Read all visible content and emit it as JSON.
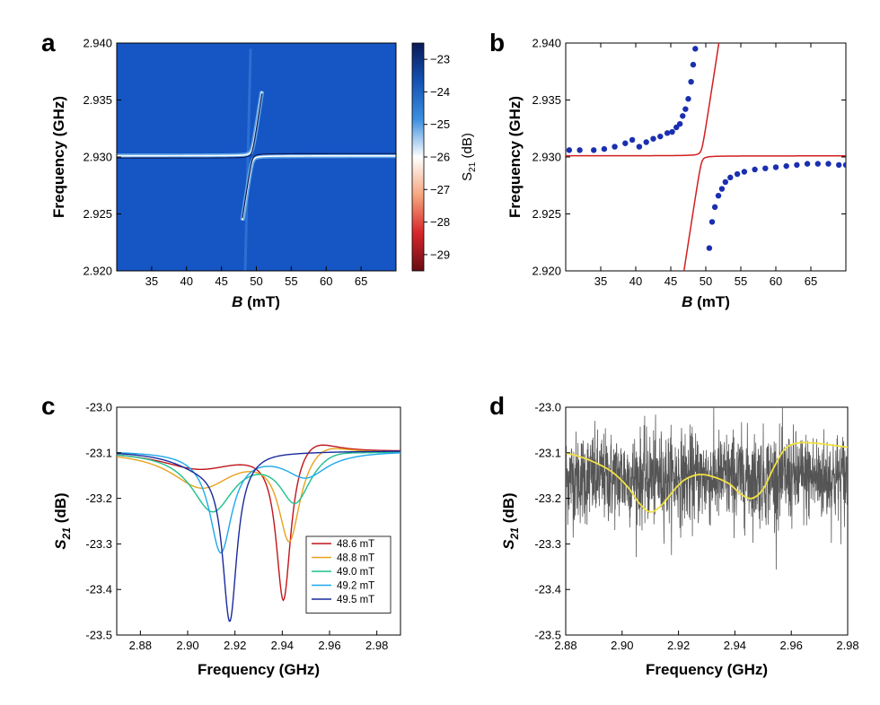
{
  "chart_data": [
    {
      "panel": "a",
      "type": "heatmap",
      "xlabel_var": "B",
      "xlabel_unit": " (mT)",
      "ylabel": "Frequency (GHz)",
      "xlim": [
        30,
        70
      ],
      "ylim": [
        2.92,
        2.94
      ],
      "xticks": [
        35,
        40,
        45,
        50,
        55,
        60,
        65
      ],
      "yticks": [
        "2.920",
        "2.925",
        "2.930",
        "2.935",
        "2.940"
      ],
      "colorbar": {
        "label_main": "S",
        "label_sub": "21",
        "label_unit": " (dB)",
        "range": [
          -29.5,
          -22.5
        ],
        "ticks": [
          -23,
          -24,
          -25,
          -26,
          -27,
          -28,
          -29
        ],
        "tick_labels": [
          "−23",
          "−24",
          "−25",
          "−26",
          "−27",
          "−28",
          "−29"
        ],
        "colors": [
          "#0b1a57",
          "#1452b4",
          "#3a8fe0",
          "#ffffff",
          "#f5a77e",
          "#d8262a",
          "#680c14"
        ]
      },
      "background_color": "#1555c4",
      "model": {
        "f0": 2.9301,
        "B0": 49.4,
        "coupling_g": 0.0006,
        "slope": 0.004
      }
    },
    {
      "panel": "b",
      "type": "scatter",
      "xlabel_var": "B",
      "xlabel_unit": " (mT)",
      "ylabel": "Frequency (GHz)",
      "xlim": [
        30,
        70
      ],
      "ylim": [
        2.92,
        2.94
      ],
      "xticks": [
        35,
        40,
        45,
        50,
        55,
        60,
        65
      ],
      "yticks": [
        "2.920",
        "2.925",
        "2.930",
        "2.935",
        "2.940"
      ],
      "series": [
        {
          "name": "upper branch",
          "points": [
            [
              30.5,
              2.9306
            ],
            [
              32,
              2.9306
            ],
            [
              34,
              2.9306
            ],
            [
              35.5,
              2.9307
            ],
            [
              37,
              2.9309
            ],
            [
              38.5,
              2.9312
            ],
            [
              39.5,
              2.9315
            ],
            [
              40.5,
              2.9309
            ],
            [
              41.5,
              2.9313
            ],
            [
              42.5,
              2.9316
            ],
            [
              43.5,
              2.9318
            ],
            [
              44.5,
              2.9321
            ],
            [
              45.2,
              2.9322
            ],
            [
              45.8,
              2.9326
            ],
            [
              46.3,
              2.9329
            ],
            [
              46.7,
              2.9336
            ],
            [
              47.1,
              2.9342
            ],
            [
              47.5,
              2.9351
            ],
            [
              47.9,
              2.9366
            ],
            [
              48.2,
              2.9381
            ],
            [
              48.5,
              2.9395
            ]
          ]
        },
        {
          "name": "lower branch",
          "points": [
            [
              50.5,
              2.922
            ],
            [
              50.9,
              2.9243
            ],
            [
              51.3,
              2.9256
            ],
            [
              51.8,
              2.9266
            ],
            [
              52.3,
              2.9272
            ],
            [
              52.8,
              2.9278
            ],
            [
              53.5,
              2.9282
            ],
            [
              54.5,
              2.9285
            ],
            [
              55.5,
              2.9287
            ],
            [
              57,
              2.9289
            ],
            [
              58.5,
              2.929
            ],
            [
              60,
              2.9291
            ],
            [
              61.5,
              2.9292
            ],
            [
              63,
              2.9293
            ],
            [
              64.5,
              2.9294
            ],
            [
              66,
              2.9294
            ],
            [
              67.5,
              2.9294
            ],
            [
              69,
              2.9293
            ],
            [
              70,
              2.9293
            ]
          ]
        }
      ],
      "fit_color": "#d21f1f",
      "point_color": "#1a2fb0"
    },
    {
      "panel": "c",
      "type": "line",
      "xlabel": "Frequency (GHz)",
      "ylabel_main": "S",
      "ylabel_sub": "21",
      "ylabel_unit": " (dB)",
      "xlim": [
        2.87,
        2.99
      ],
      "ylim": [
        -23.5,
        -23.0
      ],
      "xticks": [
        "2.88",
        "2.90",
        "2.92",
        "2.94",
        "2.96",
        "2.98"
      ],
      "yticks": [
        "-23.0",
        "-23.1",
        "-23.2",
        "-23.3",
        "-23.4",
        "-23.5"
      ],
      "baseline": -23.095,
      "series": [
        {
          "name": "48.6 mT",
          "color": "#c0151b",
          "dips": [
            {
              "f": 2.9405,
              "depth": 0.34,
              "w": 0.0038
            },
            {
              "f": 2.905,
              "depth": 0.04,
              "w": 0.02
            }
          ],
          "peaks": [
            {
              "f": 2.952,
              "h": 0.04,
              "w": 0.012
            }
          ]
        },
        {
          "name": "48.8 mT",
          "color": "#e8a21e",
          "dips": [
            {
              "f": 2.943,
              "depth": 0.2,
              "w": 0.0055
            },
            {
              "f": 2.906,
              "depth": 0.08,
              "w": 0.016
            }
          ],
          "peaks": [
            {
              "f": 2.957,
              "h": 0.03,
              "w": 0.012
            }
          ]
        },
        {
          "name": "49.0 mT",
          "color": "#1fc08d",
          "dips": [
            {
              "f": 2.9455,
              "depth": 0.11,
              "w": 0.008
            },
            {
              "f": 2.9105,
              "depth": 0.13,
              "w": 0.011
            }
          ],
          "peaks": [
            {
              "f": 2.961,
              "h": 0.015,
              "w": 0.012
            }
          ]
        },
        {
          "name": "49.2 mT",
          "color": "#1ea8ec",
          "dips": [
            {
              "f": 2.914,
              "depth": 0.22,
              "w": 0.0058
            },
            {
              "f": 2.95,
              "depth": 0.055,
              "w": 0.011
            }
          ],
          "peaks": []
        },
        {
          "name": "49.5 mT",
          "color": "#1a2a9c",
          "dips": [
            {
              "f": 2.9178,
              "depth": 0.36,
              "w": 0.0037
            },
            {
              "f": 2.905,
              "depth": 0.03,
              "w": 0.015
            }
          ],
          "peaks": [
            {
              "f": 2.933,
              "h": 0.005,
              "w": 0.012
            }
          ]
        }
      ]
    },
    {
      "panel": "d",
      "type": "line",
      "xlabel": "Frequency (GHz)",
      "ylabel_main": "S",
      "ylabel_sub": "21",
      "ylabel_unit": " (dB)",
      "xlim": [
        2.88,
        2.98
      ],
      "ylim": [
        -23.5,
        -23.0
      ],
      "xticks": [
        "2.88",
        "2.90",
        "2.92",
        "2.94",
        "2.96",
        "2.98"
      ],
      "yticks": [
        "-23.0",
        "-23.1",
        "-23.2",
        "-23.3",
        "-23.4",
        "-23.5"
      ],
      "noise": {
        "color": "#555555",
        "mean": -23.155,
        "spread": 0.05
      },
      "smooth": {
        "color": "#f1e042",
        "points": [
          [
            2.88,
            -23.1
          ],
          [
            2.888,
            -23.115
          ],
          [
            2.896,
            -23.14
          ],
          [
            2.902,
            -23.175
          ],
          [
            2.906,
            -23.21
          ],
          [
            2.91,
            -23.23
          ],
          [
            2.914,
            -23.215
          ],
          [
            2.918,
            -23.185
          ],
          [
            2.922,
            -23.16
          ],
          [
            2.927,
            -23.148
          ],
          [
            2.932,
            -23.152
          ],
          [
            2.938,
            -23.168
          ],
          [
            2.942,
            -23.19
          ],
          [
            2.946,
            -23.2
          ],
          [
            2.95,
            -23.18
          ],
          [
            2.954,
            -23.13
          ],
          [
            2.958,
            -23.09
          ],
          [
            2.963,
            -23.078
          ],
          [
            2.97,
            -23.08
          ],
          [
            2.98,
            -23.088
          ]
        ]
      }
    }
  ],
  "panels": {
    "a": {
      "letter": "a"
    },
    "b": {
      "letter": "b"
    },
    "c": {
      "letter": "c"
    },
    "d": {
      "letter": "d"
    }
  }
}
